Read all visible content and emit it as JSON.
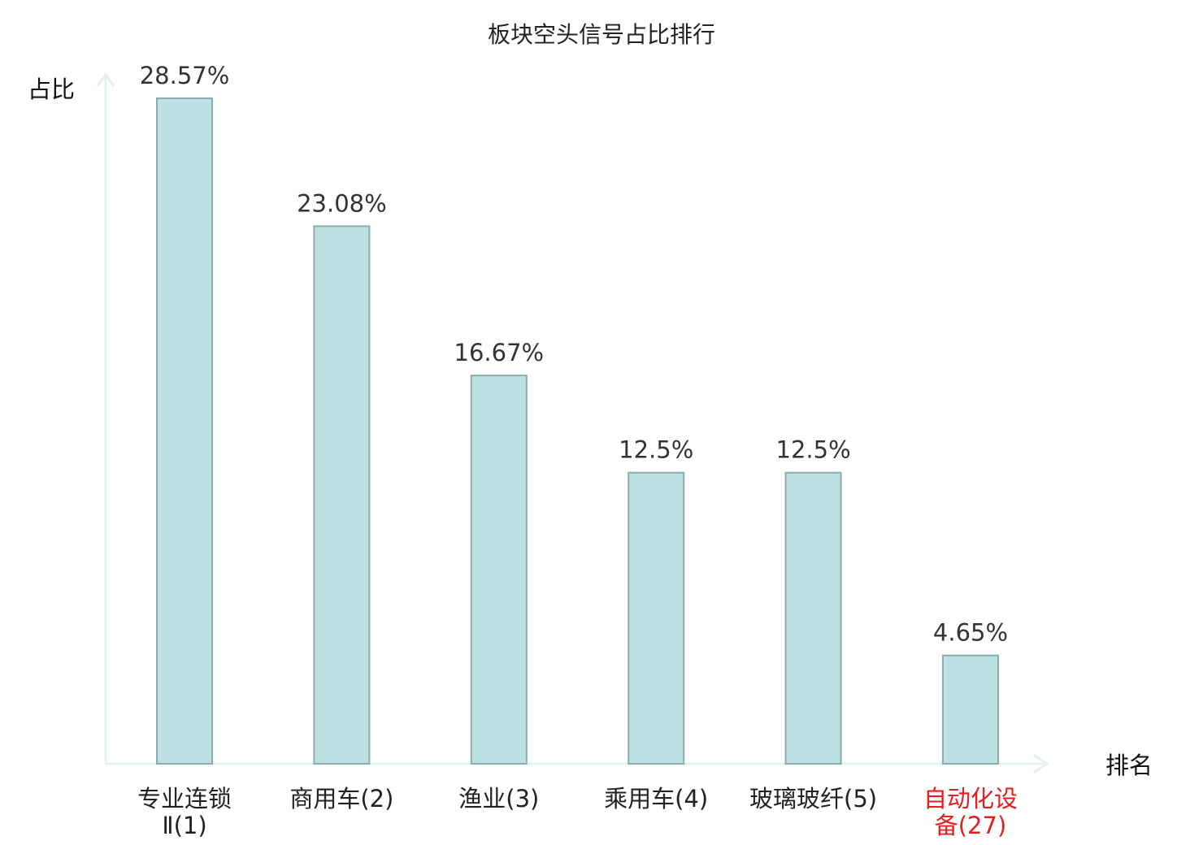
{
  "chart_data": {
    "type": "bar",
    "title": "板块空头信号占比排行",
    "ylabel": "占比",
    "xlabel": "排名",
    "ylim": [
      0,
      30
    ],
    "grid": false,
    "legend": "none",
    "categories": [
      [
        "专业连锁",
        "Ⅱ(1)"
      ],
      [
        "商用车(2)"
      ],
      [
        "渔业(3)"
      ],
      [
        "乘用车(4)"
      ],
      [
        "玻璃玻纤(5)"
      ],
      [
        "自动化设",
        "备(27)"
      ]
    ],
    "values": [
      28.57,
      23.08,
      16.67,
      12.5,
      12.5,
      4.65
    ],
    "value_labels": [
      "28.57%",
      "23.08%",
      "16.67%",
      "12.5%",
      "12.5%",
      "4.65%"
    ],
    "highlight_index": 5
  },
  "colors": {
    "bar_fill": "#bde0e3",
    "bar_stroke": "#8aaeb0",
    "axis": "#e0f2f1",
    "label_default": "#222222",
    "label_highlight": "#e02020"
  }
}
